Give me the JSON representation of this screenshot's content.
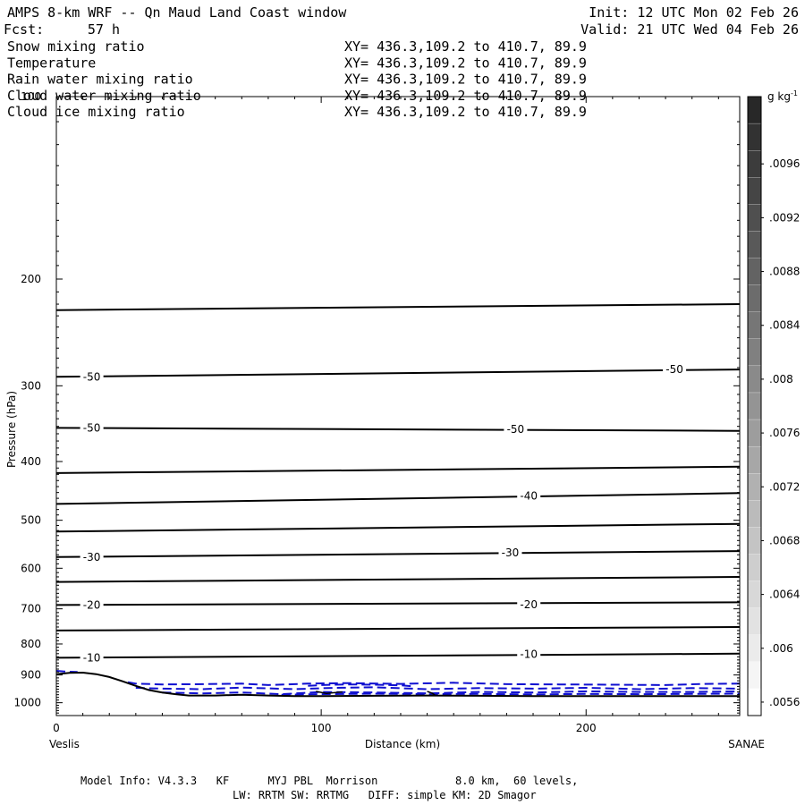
{
  "header": {
    "title": "AMPS 8-km WRF -- Qn Maud Land Coast window",
    "init": "Init: 12 UTC Mon 02 Feb 26",
    "fcst_label": "Fcst:",
    "fcst_value": "57 h",
    "valid": "Valid: 21 UTC Wed 04 Feb 26"
  },
  "fields": [
    {
      "name": "Snow mixing ratio",
      "xy": "XY= 436.3,109.2 to 410.7, 89.9",
      "color": "#000000"
    },
    {
      "name": "Temperature",
      "xy": "XY= 436.3,109.2 to 410.7, 89.9",
      "color": "#000000"
    },
    {
      "name": "Rain water mixing ratio",
      "xy": "XY= 436.3,109.2 to 410.7, 89.9",
      "color": "#e00000"
    },
    {
      "name": "Cloud water mixing ratio",
      "xy": "XY= 436.3,109.2 to 410.7, 89.9",
      "color": "#1010d0"
    },
    {
      "name": "Cloud ice mixing ratio",
      "xy": "XY= 436.3,109.2 to 410.7, 89.9",
      "color": "#000000"
    }
  ],
  "footer": {
    "line1": "Model Info: V4.3.3   KF      MYJ PBL  Morrison            8.0 km,  60 levels,",
    "line2": "LW: RRTM SW: RRTMG   DIFF: simple KM: 2D Smagor"
  },
  "chart_data": {
    "type": "line",
    "xlabel": "Distance (km)",
    "ylabel": "Pressure (hPa)",
    "x_left_label": "Veslis",
    "x_right_label": "SANAE",
    "xlim": [
      0,
      258
    ],
    "ylim": [
      100,
      1050
    ],
    "y_scale": "log",
    "x_ticks": [
      0,
      100,
      200
    ],
    "y_ticks": [
      100,
      200,
      300,
      400,
      500,
      600,
      700,
      800,
      900,
      1000
    ],
    "colorbar": {
      "unit": "g kg",
      "unit_exponent": "-1",
      "ticks": [
        ".0096",
        ".0092",
        ".0088",
        ".0084",
        ".008",
        ".0076",
        ".0072",
        ".0068",
        ".0064",
        ".006",
        ".0056"
      ]
    },
    "isotherms": [
      {
        "label": "",
        "x": [
          0,
          258
        ],
        "p": [
          225,
          220
        ]
      },
      {
        "label": "-50",
        "label_positions": [
          [
            10,
            290
          ],
          [
            230,
            282
          ]
        ],
        "x": [
          0,
          258
        ],
        "p": [
          290,
          282
        ]
      },
      {
        "label": "-50",
        "label_positions": [
          [
            10,
            352
          ],
          [
            170,
            354
          ]
        ],
        "x": [
          0,
          258
        ],
        "p": [
          352,
          356
        ]
      },
      {
        "label": "",
        "x": [
          0,
          258
        ],
        "p": [
          418,
          408
        ]
      },
      {
        "label": "-40",
        "label_positions": [
          [
            175,
            456
          ]
        ],
        "x": [
          0,
          258
        ],
        "p": [
          470,
          451
        ]
      },
      {
        "label": "",
        "x": [
          0,
          258
        ],
        "p": [
          522,
          507
        ]
      },
      {
        "label": "-30",
        "label_positions": [
          [
            10,
            575
          ],
          [
            168,
            566
          ]
        ],
        "x": [
          0,
          258
        ],
        "p": [
          575,
          562
        ]
      },
      {
        "label": "",
        "x": [
          0,
          258
        ],
        "p": [
          632,
          620
        ]
      },
      {
        "label": "-20",
        "label_positions": [
          [
            10,
            690
          ],
          [
            175,
            689
          ]
        ],
        "x": [
          0,
          258
        ],
        "p": [
          690,
          683
        ]
      },
      {
        "label": "",
        "x": [
          0,
          258
        ],
        "p": [
          760,
          750
        ]
      },
      {
        "label": "-10",
        "label_positions": [
          [
            10,
            843
          ],
          [
            175,
            832
          ]
        ],
        "x": [
          0,
          258
        ],
        "p": [
          843,
          830
        ]
      }
    ],
    "terrain_p": {
      "x": [
        0,
        5,
        10,
        15,
        20,
        25,
        30,
        35,
        40,
        45,
        50,
        60,
        70,
        80,
        90,
        100,
        120,
        140,
        160,
        180,
        200,
        220,
        240,
        258
      ],
      "p": [
        897,
        893,
        892,
        897,
        907,
        922,
        938,
        953,
        962,
        968,
        973,
        973,
        970,
        973,
        975,
        975,
        974,
        973,
        974,
        975,
        975,
        975,
        975,
        975
      ]
    },
    "cloud_water_contours": [
      {
        "x": [
          0,
          3,
          8
        ],
        "p": [
          886,
          888,
          890
        ]
      },
      {
        "x": [
          27,
          30,
          40,
          55,
          70,
          80,
          95,
          110,
          130,
          150,
          170,
          190,
          210,
          230,
          245,
          258
        ],
        "p": [
          925,
          930,
          933,
          932,
          930,
          935,
          930,
          928,
          931,
          927,
          932,
          933,
          934,
          935,
          931,
          930
        ]
      },
      {
        "x": [
          30,
          40,
          55,
          70,
          90,
          105,
          120,
          140,
          160,
          180,
          200,
          220,
          240,
          258
        ],
        "p": [
          945,
          948,
          950,
          944,
          950,
          945,
          943,
          950,
          946,
          948,
          945,
          950,
          946,
          948
        ]
      },
      {
        "x": [
          40,
          55,
          70,
          85,
          100,
          120,
          140,
          160,
          180,
          200,
          220,
          240,
          258
        ],
        "p": [
          962,
          965,
          962,
          968,
          960,
          962,
          965,
          960,
          962,
          958,
          960,
          960,
          958
        ]
      },
      {
        "x": [
          85,
          100,
          120,
          140,
          160,
          180,
          200,
          220,
          240,
          258
        ],
        "p": [
          970,
          968,
          966,
          968,
          967,
          969,
          967,
          968,
          967,
          966
        ]
      },
      {
        "x": [
          95,
          100,
          110,
          120,
          130,
          135
        ],
        "p": [
          938,
          935,
          933,
          934,
          936,
          940
        ]
      }
    ],
    "snow_contours": [
      {
        "x": [
          98,
          102,
          108
        ],
        "p": [
          958,
          965,
          960
        ]
      },
      {
        "x": [
          140,
          142,
          143
        ],
        "p": [
          958,
          965,
          972
        ]
      }
    ]
  }
}
